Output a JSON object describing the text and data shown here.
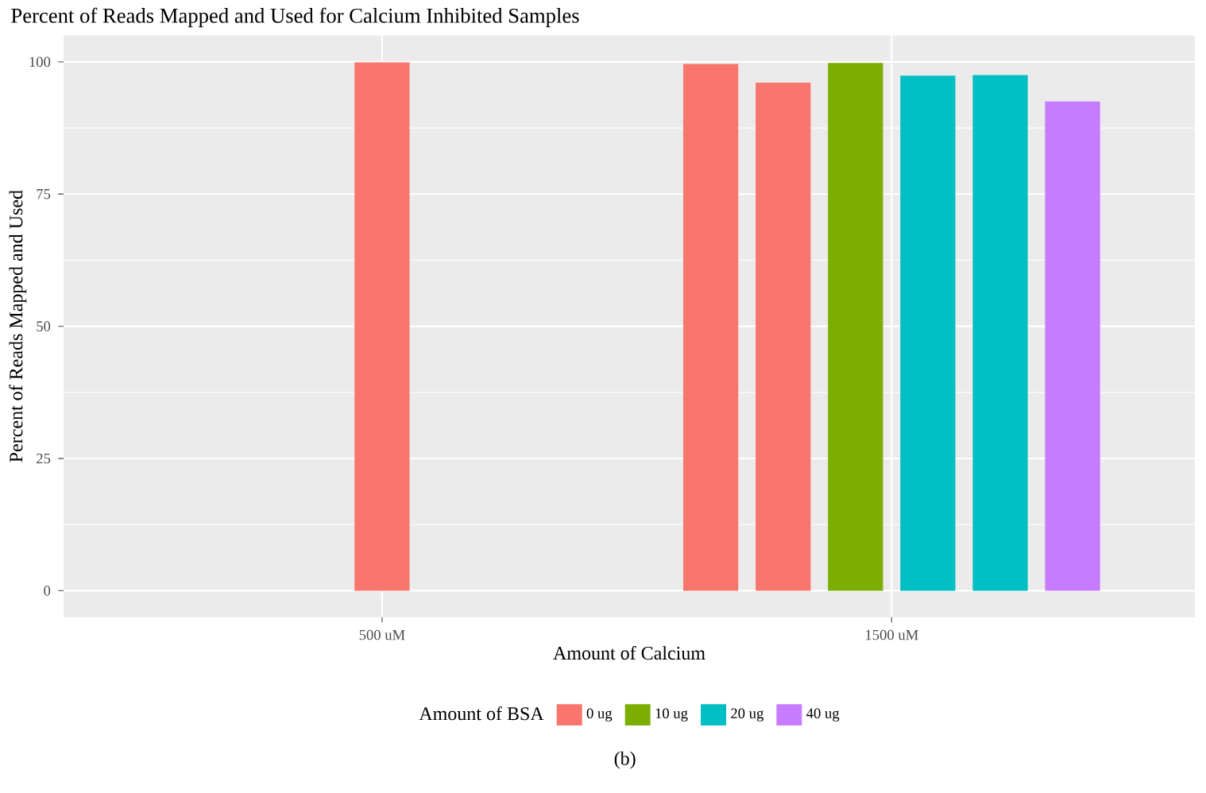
{
  "chart_data": {
    "type": "bar",
    "title": "Percent of Reads Mapped and Used for Calcium Inhibited Samples",
    "xlabel": "Amount of Calcium",
    "ylabel": "Percent of Reads Mapped and Used",
    "legend_title": "Amount of BSA",
    "categories": [
      "500 uM",
      "1500 uM"
    ],
    "series": [
      {
        "name": "0 ug",
        "color": "#f8766d",
        "values": [
          99.9,
          99.6
        ]
      },
      {
        "color": "#f8766d",
        "values": [
          null,
          96.1
        ]
      },
      {
        "name": "10 ug",
        "color": "#7cae00",
        "values": [
          null,
          99.8
        ]
      },
      {
        "name": "20 ug",
        "color": "#00bfc4",
        "values": [
          null,
          97.4
        ]
      },
      {
        "color": "#00bfc4",
        "values": [
          null,
          97.5
        ]
      },
      {
        "name": "40 ug",
        "color": "#c77cff",
        "values": [
          null,
          92.5
        ]
      }
    ],
    "ylim": [
      -5,
      105
    ],
    "yticks": [
      0,
      25,
      50,
      75,
      100
    ],
    "grid": true,
    "legend": "bottom",
    "annotations": [
      "(b)"
    ]
  }
}
